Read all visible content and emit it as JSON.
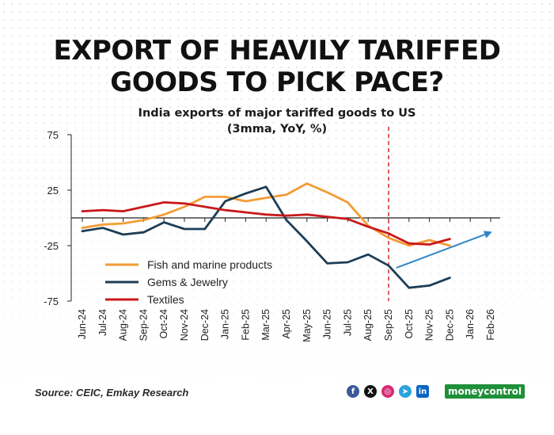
{
  "headline": {
    "line1": "EXPORT OF HEAVILY TARIFFED",
    "line2": "GOODS TO PICK PACE?"
  },
  "footer": {
    "source": "Source: CEIC, Emkay Research",
    "brand": "moneycontrol",
    "social_icons": [
      "facebook-icon",
      "x-icon",
      "instagram-icon",
      "telegram-icon",
      "linkedin-icon"
    ]
  },
  "chart_data": {
    "type": "line",
    "title": "India exports of major tariffed goods to US",
    "subtitle": "(3mma, YoY, %)",
    "categories": [
      "Jun-24",
      "Jul-24",
      "Aug-24",
      "Sep-24",
      "Oct-24",
      "Nov-24",
      "Dec-24",
      "Jan-25",
      "Feb-25",
      "Mar-25",
      "Apr-25",
      "May-25",
      "Jun-25",
      "Jul-25",
      "Aug-25",
      "Sep-25",
      "Oct-25",
      "Nov-25",
      "Dec-25",
      "Jan-26",
      "Feb-26"
    ],
    "y_ticks": [
      75,
      25,
      -25,
      -75
    ],
    "ylim": [
      -75,
      75
    ],
    "grid": false,
    "legend_position": "bottom-left",
    "series": [
      {
        "name": "Fish and marine products",
        "color": "#f39c34",
        "values": [
          -9,
          -6,
          -5,
          -2,
          3,
          10,
          19,
          19,
          15,
          18,
          21,
          31,
          23,
          14,
          -7,
          -18,
          -25,
          -20,
          -25,
          null,
          null
        ]
      },
      {
        "name": "Gems & Jewelry",
        "color": "#1c3d56",
        "values": [
          -12,
          -9,
          -15,
          -13,
          -4,
          -10,
          -10,
          15,
          22,
          28,
          -2,
          -21,
          -41,
          -40,
          -33,
          -43,
          -63,
          -61,
          -54,
          null,
          null
        ]
      },
      {
        "name": "Textiles",
        "color": "#c9191b",
        "values": [
          6,
          7,
          6,
          10,
          14,
          13,
          10,
          7,
          5,
          3,
          2,
          3,
          1,
          -1,
          -8,
          -14,
          -23,
          -24,
          -19,
          null,
          null
        ]
      }
    ],
    "annotations": [
      {
        "type": "vertical-dashed-line",
        "at": "Sep-25",
        "color": "#c9191b"
      },
      {
        "type": "arrow",
        "from": [
          "Oct-25",
          -45
        ],
        "to": [
          "Feb-26",
          -13
        ],
        "color": "#2f86c8"
      }
    ]
  }
}
